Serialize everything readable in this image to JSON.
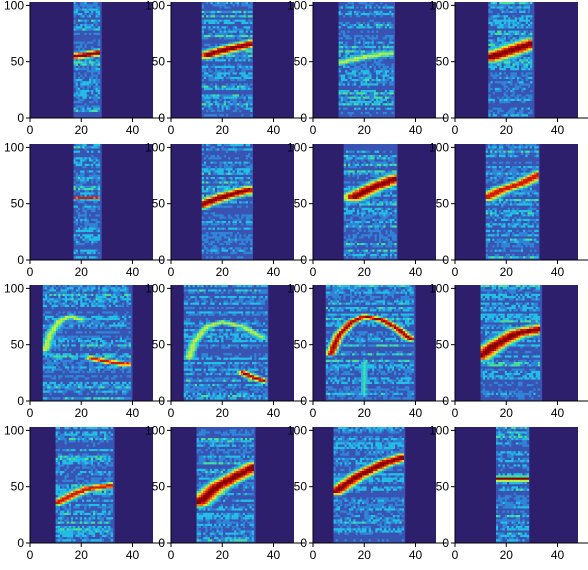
{
  "figure": {
    "panel_background": "#2d1f6b",
    "strip_background": "#3954b3",
    "colormap": [
      "#2d1f6b",
      "#2f3d9e",
      "#3954b3",
      "#2f86d8",
      "#22c1e6",
      "#46e39c",
      "#b9f048",
      "#ffd21e",
      "#ff6b10",
      "#d61a00",
      "#8f0000"
    ]
  },
  "chart_data": [
    {
      "type": "heatmap",
      "xlim": [
        0,
        48
      ],
      "ylim": [
        0,
        103
      ],
      "xticks": [
        "0",
        "20",
        "40"
      ],
      "yticks": [
        "0",
        "50",
        "100"
      ],
      "strip": [
        17,
        28
      ],
      "curves": [
        {
          "points": [
            [
              18,
              55
            ],
            [
              22,
              56
            ],
            [
              27,
              58
            ]
          ],
          "width": 4,
          "peak": 1.0
        }
      ]
    },
    {
      "type": "heatmap",
      "xlim": [
        0,
        48
      ],
      "ylim": [
        0,
        103
      ],
      "xticks": [
        "0",
        "20",
        "40"
      ],
      "yticks": [
        "0",
        "50",
        "100"
      ],
      "strip": [
        12,
        32
      ],
      "curves": [
        {
          "points": [
            [
              14,
              56
            ],
            [
              22,
              61
            ],
            [
              32,
              66
            ]
          ],
          "width": 5,
          "peak": 1.0
        }
      ]
    },
    {
      "type": "heatmap",
      "xlim": [
        0,
        48
      ],
      "ylim": [
        0,
        103
      ],
      "xticks": [
        "0",
        "20",
        "40"
      ],
      "yticks": [
        "0",
        "50",
        "100"
      ],
      "strip": [
        10,
        32
      ],
      "curves": [
        {
          "points": [
            [
              10,
              49
            ],
            [
              20,
              54
            ],
            [
              32,
              58
            ]
          ],
          "width": 4,
          "peak": 0.6
        }
      ]
    },
    {
      "type": "heatmap",
      "xlim": [
        0,
        48
      ],
      "ylim": [
        0,
        103
      ],
      "xticks": [
        "0",
        "20",
        "40"
      ],
      "yticks": [
        "0",
        "50",
        "100"
      ],
      "strip": [
        13,
        31
      ],
      "curves": [
        {
          "points": [
            [
              14,
              54
            ],
            [
              22,
              60
            ],
            [
              30,
              66
            ]
          ],
          "width": 7,
          "peak": 1.0
        }
      ]
    },
    {
      "type": "heatmap",
      "xlim": [
        0,
        48
      ],
      "ylim": [
        0,
        103
      ],
      "xticks": [
        "0",
        "20",
        "40"
      ],
      "yticks": [
        "0",
        "50",
        "100"
      ],
      "strip": [
        17,
        28
      ],
      "curves": [
        {
          "points": [
            [
              17,
              55
            ],
            [
              22,
              55
            ],
            [
              28,
              55
            ]
          ],
          "width": 2,
          "peak": 0.85
        }
      ]
    },
    {
      "type": "heatmap",
      "xlim": [
        0,
        48
      ],
      "ylim": [
        0,
        103
      ],
      "xticks": [
        "0",
        "20",
        "40"
      ],
      "yticks": [
        "0",
        "50",
        "100"
      ],
      "strip": [
        12,
        32
      ],
      "curves": [
        {
          "points": [
            [
              12,
              49
            ],
            [
              20,
              56
            ],
            [
              30,
              62
            ]
          ],
          "width": 5,
          "peak": 1.0
        }
      ]
    },
    {
      "type": "heatmap",
      "xlim": [
        0,
        48
      ],
      "ylim": [
        0,
        103
      ],
      "xticks": [
        "0",
        "20",
        "40"
      ],
      "yticks": [
        "0",
        "50",
        "100"
      ],
      "strip": [
        12,
        33
      ],
      "curves": [
        {
          "points": [
            [
              16,
              56
            ],
            [
              24,
              65
            ],
            [
              32,
              72
            ]
          ],
          "width": 6,
          "peak": 1.0
        }
      ]
    },
    {
      "type": "heatmap",
      "xlim": [
        0,
        48
      ],
      "ylim": [
        0,
        103
      ],
      "xticks": [
        "0",
        "20",
        "40"
      ],
      "yticks": [
        "0",
        "50",
        "100"
      ],
      "strip": [
        12,
        33
      ],
      "curves": [
        {
          "points": [
            [
              13,
              56
            ],
            [
              18,
              62
            ],
            [
              26,
              68
            ],
            [
              33,
              76
            ]
          ],
          "width": 5,
          "peak": 0.9
        }
      ]
    },
    {
      "type": "heatmap",
      "xlim": [
        0,
        48
      ],
      "ylim": [
        0,
        103
      ],
      "xticks": [
        "0",
        "20",
        "40"
      ],
      "yticks": [
        "0",
        "50",
        "100"
      ],
      "strip": [
        5,
        40
      ],
      "curves": [
        {
          "points": [
            [
              6,
              45
            ],
            [
              8,
              60
            ],
            [
              12,
              72
            ],
            [
              16,
              75
            ],
            [
              20,
              72
            ]
          ],
          "width": 3,
          "peak": 0.6
        },
        {
          "points": [
            [
              24,
              38
            ],
            [
              30,
              35
            ],
            [
              36,
              33
            ],
            [
              40,
              33
            ]
          ],
          "width": 3,
          "peak": 0.9
        }
      ]
    },
    {
      "type": "heatmap",
      "xlim": [
        0,
        48
      ],
      "ylim": [
        0,
        103
      ],
      "xticks": [
        "0",
        "20",
        "40"
      ],
      "yticks": [
        "0",
        "50",
        "100"
      ],
      "strip": [
        5,
        38
      ],
      "curves": [
        {
          "points": [
            [
              7,
              38
            ],
            [
              9,
              52
            ],
            [
              14,
              66
            ],
            [
              20,
              70
            ],
            [
              28,
              66
            ],
            [
              36,
              56
            ]
          ],
          "width": 3,
          "peak": 0.6
        },
        {
          "points": [
            [
              28,
              25
            ],
            [
              32,
              21
            ],
            [
              36,
              18
            ]
          ],
          "width": 3,
          "peak": 0.95
        }
      ]
    },
    {
      "type": "heatmap",
      "xlim": [
        0,
        48
      ],
      "ylim": [
        0,
        103
      ],
      "xticks": [
        "0",
        "20",
        "40"
      ],
      "yticks": [
        "0",
        "50",
        "100"
      ],
      "strip": [
        5,
        40
      ],
      "curves": [
        {
          "points": [
            [
              7,
              42
            ],
            [
              10,
              58
            ],
            [
              15,
              70
            ],
            [
              20,
              75
            ],
            [
              27,
              72
            ],
            [
              33,
              64
            ],
            [
              38,
              55
            ]
          ],
          "width": 3,
          "peak": 0.95
        },
        {
          "points": [
            [
              20,
              5
            ],
            [
              20,
              20
            ],
            [
              20,
              35
            ]
          ],
          "width": 2,
          "peak": 0.45
        }
      ]
    },
    {
      "type": "heatmap",
      "xlim": [
        0,
        48
      ],
      "ylim": [
        0,
        103
      ],
      "xticks": [
        "0",
        "20",
        "40"
      ],
      "yticks": [
        "0",
        "50",
        "100"
      ],
      "strip": [
        10,
        34
      ],
      "curves": [
        {
          "points": [
            [
              10,
              40
            ],
            [
              16,
              50
            ],
            [
              24,
              60
            ],
            [
              34,
              64
            ]
          ],
          "width": 6,
          "peak": 1.0
        }
      ]
    },
    {
      "type": "heatmap",
      "xlim": [
        0,
        48
      ],
      "ylim": [
        0,
        103
      ],
      "xticks": [
        "0",
        "20",
        "40"
      ],
      "yticks": [
        "0",
        "50",
        "100"
      ],
      "strip": [
        10,
        33
      ],
      "curves": [
        {
          "points": [
            [
              11,
              36
            ],
            [
              16,
              42
            ],
            [
              22,
              48
            ],
            [
              32,
              51
            ]
          ],
          "width": 4,
          "peak": 0.9
        }
      ]
    },
    {
      "type": "heatmap",
      "xlim": [
        0,
        48
      ],
      "ylim": [
        0,
        103
      ],
      "xticks": [
        "0",
        "20",
        "40"
      ],
      "yticks": [
        "0",
        "50",
        "100"
      ],
      "strip": [
        10,
        33
      ],
      "curves": [
        {
          "points": [
            [
              11,
              36
            ],
            [
              18,
              50
            ],
            [
              26,
              60
            ],
            [
              33,
              68
            ]
          ],
          "width": 6,
          "peak": 1.0
        }
      ]
    },
    {
      "type": "heatmap",
      "xlim": [
        0,
        48
      ],
      "ylim": [
        0,
        103
      ],
      "xticks": [
        "0",
        "20",
        "40"
      ],
      "yticks": [
        "0",
        "50",
        "100"
      ],
      "strip": [
        8,
        36
      ],
      "curves": [
        {
          "points": [
            [
              9,
              46
            ],
            [
              18,
              60
            ],
            [
              28,
              71
            ],
            [
              35,
              76
            ]
          ],
          "width": 5,
          "peak": 1.0
        }
      ]
    },
    {
      "type": "heatmap",
      "xlim": [
        0,
        48
      ],
      "ylim": [
        0,
        103
      ],
      "xticks": [
        "0",
        "20",
        "40"
      ],
      "yticks": [
        "0",
        "50",
        "100"
      ],
      "strip": [
        16,
        29
      ],
      "curves": [
        {
          "points": [
            [
              16,
              57
            ],
            [
              22,
              57
            ],
            [
              29,
              57
            ]
          ],
          "width": 3,
          "peak": 1.0
        }
      ]
    }
  ]
}
